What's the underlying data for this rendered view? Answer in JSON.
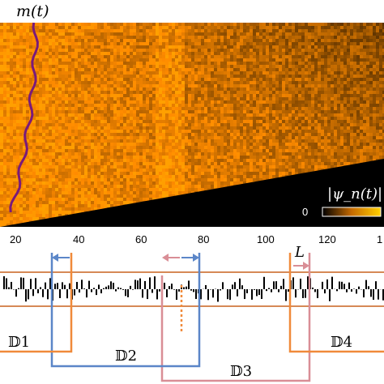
{
  "heatmap": {
    "curve_label": "m(t)",
    "colorbar_label": "|ψ_n(t)|",
    "colorbar_min_label": "0",
    "colors": {
      "dark": "#000000",
      "mid": "#c56a00",
      "bright": "#ffb000",
      "curve": "#7a1a7a"
    }
  },
  "axis": {
    "ticks": [
      "20",
      "40",
      "60",
      "80",
      "100",
      "120",
      "1"
    ]
  },
  "potential": {
    "line_color": "#c8621e",
    "bar_color": "#000000",
    "domains": [
      {
        "label": "𝔻1",
        "color": "#f08a3a"
      },
      {
        "label": "𝔻2",
        "color": "#5b86c8"
      },
      {
        "label": "𝔻3",
        "color": "#d98e96"
      },
      {
        "label": "𝔻4",
        "color": "#f08a3a"
      }
    ],
    "length_label": "L",
    "arrow_colors": {
      "blue": "#5b86c8",
      "pink": "#d98e96"
    }
  }
}
